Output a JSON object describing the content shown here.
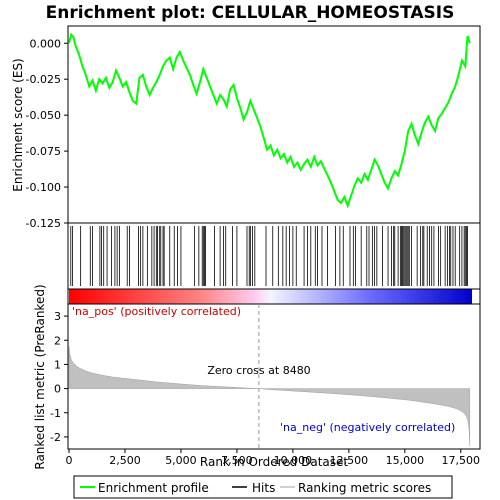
{
  "chart_data": {
    "type": "line",
    "title": "Enrichment plot: CELLULAR_HOMEOSTASIS",
    "x_range": [
      0,
      18000
    ],
    "x_ticks": [
      0,
      2500,
      5000,
      7500,
      10000,
      12500,
      15000,
      17500
    ],
    "x_tick_labels": [
      "0",
      "2,500",
      "5,000",
      "7,500",
      "10,000",
      "12,500",
      "15,000",
      "17,500"
    ],
    "xlabel": "Rank in Ordered Dataset",
    "top_panel": {
      "ylabel": "Enrichment score (ES)",
      "ylim": [
        -0.125,
        0.012
      ],
      "y_ticks": [
        0.0,
        -0.025,
        -0.05,
        -0.075,
        -0.1,
        -0.125
      ],
      "y_tick_labels": [
        "0.000",
        "-0.025",
        "-0.050",
        "-0.075",
        "-0.100",
        "-0.125"
      ],
      "series": [
        {
          "name": "Enrichment profile",
          "color": "#00ff00",
          "x": [
            0,
            100,
            200,
            300,
            450,
            600,
            750,
            900,
            1050,
            1200,
            1350,
            1500,
            1650,
            1800,
            1950,
            2100,
            2250,
            2400,
            2550,
            2700,
            2850,
            3000,
            3150,
            3300,
            3450,
            3600,
            3750,
            3900,
            4050,
            4200,
            4350,
            4500,
            4650,
            4800,
            4950,
            5100,
            5250,
            5400,
            5550,
            5700,
            5850,
            6000,
            6150,
            6300,
            6450,
            6600,
            6750,
            6900,
            7050,
            7200,
            7350,
            7500,
            7650,
            7800,
            7950,
            8100,
            8250,
            8400,
            8550,
            8700,
            8850,
            9000,
            9150,
            9300,
            9450,
            9600,
            9750,
            9900,
            10050,
            10200,
            10350,
            10500,
            10650,
            10800,
            10950,
            11100,
            11250,
            11400,
            11550,
            11700,
            11850,
            12000,
            12150,
            12300,
            12450,
            12600,
            12750,
            12900,
            13050,
            13200,
            13350,
            13500,
            13650,
            13800,
            13950,
            14100,
            14250,
            14400,
            14550,
            14700,
            14850,
            15000,
            15150,
            15300,
            15450,
            15600,
            15750,
            15900,
            16050,
            16200,
            16350,
            16500,
            16650,
            16800,
            16950,
            17100,
            17250,
            17400,
            17550,
            17700,
            17800,
            17900
          ],
          "y": [
            0.0,
            0.006,
            0.004,
            -0.002,
            -0.008,
            -0.016,
            -0.022,
            -0.03,
            -0.026,
            -0.033,
            -0.025,
            -0.028,
            -0.024,
            -0.031,
            -0.027,
            -0.019,
            -0.024,
            -0.03,
            -0.027,
            -0.034,
            -0.04,
            -0.042,
            -0.024,
            -0.022,
            -0.03,
            -0.036,
            -0.031,
            -0.027,
            -0.022,
            -0.016,
            -0.012,
            -0.01,
            -0.018,
            -0.01,
            -0.006,
            -0.012,
            -0.017,
            -0.022,
            -0.029,
            -0.035,
            -0.027,
            -0.018,
            -0.024,
            -0.03,
            -0.036,
            -0.042,
            -0.036,
            -0.039,
            -0.044,
            -0.032,
            -0.029,
            -0.038,
            -0.045,
            -0.053,
            -0.048,
            -0.04,
            -0.046,
            -0.052,
            -0.058,
            -0.066,
            -0.074,
            -0.071,
            -0.078,
            -0.074,
            -0.08,
            -0.077,
            -0.083,
            -0.079,
            -0.086,
            -0.083,
            -0.088,
            -0.084,
            -0.081,
            -0.086,
            -0.079,
            -0.085,
            -0.082,
            -0.087,
            -0.092,
            -0.097,
            -0.103,
            -0.109,
            -0.111,
            -0.107,
            -0.113,
            -0.106,
            -0.099,
            -0.094,
            -0.097,
            -0.091,
            -0.095,
            -0.088,
            -0.081,
            -0.085,
            -0.091,
            -0.097,
            -0.101,
            -0.094,
            -0.089,
            -0.092,
            -0.084,
            -0.075,
            -0.061,
            -0.056,
            -0.064,
            -0.07,
            -0.062,
            -0.055,
            -0.051,
            -0.057,
            -0.061,
            -0.052,
            -0.049,
            -0.045,
            -0.041,
            -0.035,
            -0.03,
            -0.022,
            -0.012,
            -0.016,
            0.005,
            0.0
          ]
        }
      ]
    },
    "hits_panel": {
      "name": "Hits",
      "hit_ranks": [
        80,
        160,
        520,
        950,
        1050,
        1380,
        1450,
        1550,
        1700,
        1900,
        2050,
        2150,
        2250,
        2600,
        2700,
        3100,
        3200,
        3300,
        3500,
        3700,
        3800,
        3900,
        3950,
        4050,
        4100,
        4200,
        4250,
        4500,
        4700,
        4850,
        5000,
        5600,
        5800,
        5950,
        6000,
        6050,
        6100,
        6500,
        6750,
        6900,
        7000,
        7300,
        7500,
        7950,
        8050,
        8100,
        8200,
        8300,
        8800,
        9100,
        9350,
        9550,
        9700,
        9850,
        10000,
        10150,
        10500,
        10650,
        10800,
        11000,
        11100,
        11300,
        11550,
        11900,
        12100,
        12250,
        12550,
        12700,
        12800,
        13050,
        13300,
        13400,
        13550,
        13650,
        13750,
        14000,
        14250,
        14400,
        14500,
        14550,
        14700,
        14800,
        14850,
        14900,
        14950,
        15000,
        15050,
        15100,
        15150,
        15200,
        15300,
        15550,
        15700,
        15800,
        15850,
        16000,
        16100,
        16200,
        16300,
        16500,
        16600,
        16800,
        16900,
        17000,
        17050,
        17150,
        17250,
        17450,
        17550,
        17650,
        17700,
        17750,
        17800
      ]
    },
    "metric_panel": {
      "name": "Ranking metric scores",
      "ylabel": "Ranked list metric (PreRanked)",
      "ylim": [
        -2.5,
        3.5
      ],
      "y_ticks": [
        3,
        2,
        1,
        0,
        -1,
        -2
      ],
      "y_tick_labels": [
        "3",
        "2",
        "1",
        "0",
        "-1",
        "-2"
      ],
      "x": [
        0,
        30,
        100,
        200,
        400,
        700,
        1000,
        1500,
        2000,
        3000,
        4000,
        5000,
        6000,
        7000,
        8000,
        8480,
        9000,
        10000,
        11000,
        12000,
        13000,
        14000,
        15000,
        15500,
        16000,
        16500,
        17000,
        17300,
        17500,
        17650,
        17750,
        17820,
        17870,
        17900
      ],
      "y": [
        1.75,
        1.45,
        1.2,
        1.05,
        0.88,
        0.75,
        0.65,
        0.55,
        0.47,
        0.37,
        0.27,
        0.19,
        0.12,
        0.07,
        0.02,
        0.0,
        -0.04,
        -0.1,
        -0.16,
        -0.22,
        -0.29,
        -0.37,
        -0.46,
        -0.52,
        -0.59,
        -0.66,
        -0.75,
        -0.83,
        -0.92,
        -1.02,
        -1.15,
        -1.35,
        -1.7,
        -2.4
      ],
      "fill_color": "#c0c0c0",
      "zero_cross_label": "Zero cross at 8480",
      "zero_cross": 8480,
      "pos_label": "'na_pos' (positively correlated)",
      "neg_label": "'na_neg' (negatively correlated)"
    },
    "legend": {
      "placement": "bottom",
      "entries": [
        {
          "label": "Enrichment profile",
          "color": "#00ff00"
        },
        {
          "label": "Hits",
          "color": "#000000"
        },
        {
          "label": "Ranking metric scores",
          "color": "#c0c0c0"
        }
      ]
    },
    "colors": {
      "pos_label": "#cc0000",
      "neg_label": "#0000cc",
      "heat_start": "#ff0000",
      "heat_mid": "#ffffff",
      "heat_end": "#0000ff"
    }
  }
}
